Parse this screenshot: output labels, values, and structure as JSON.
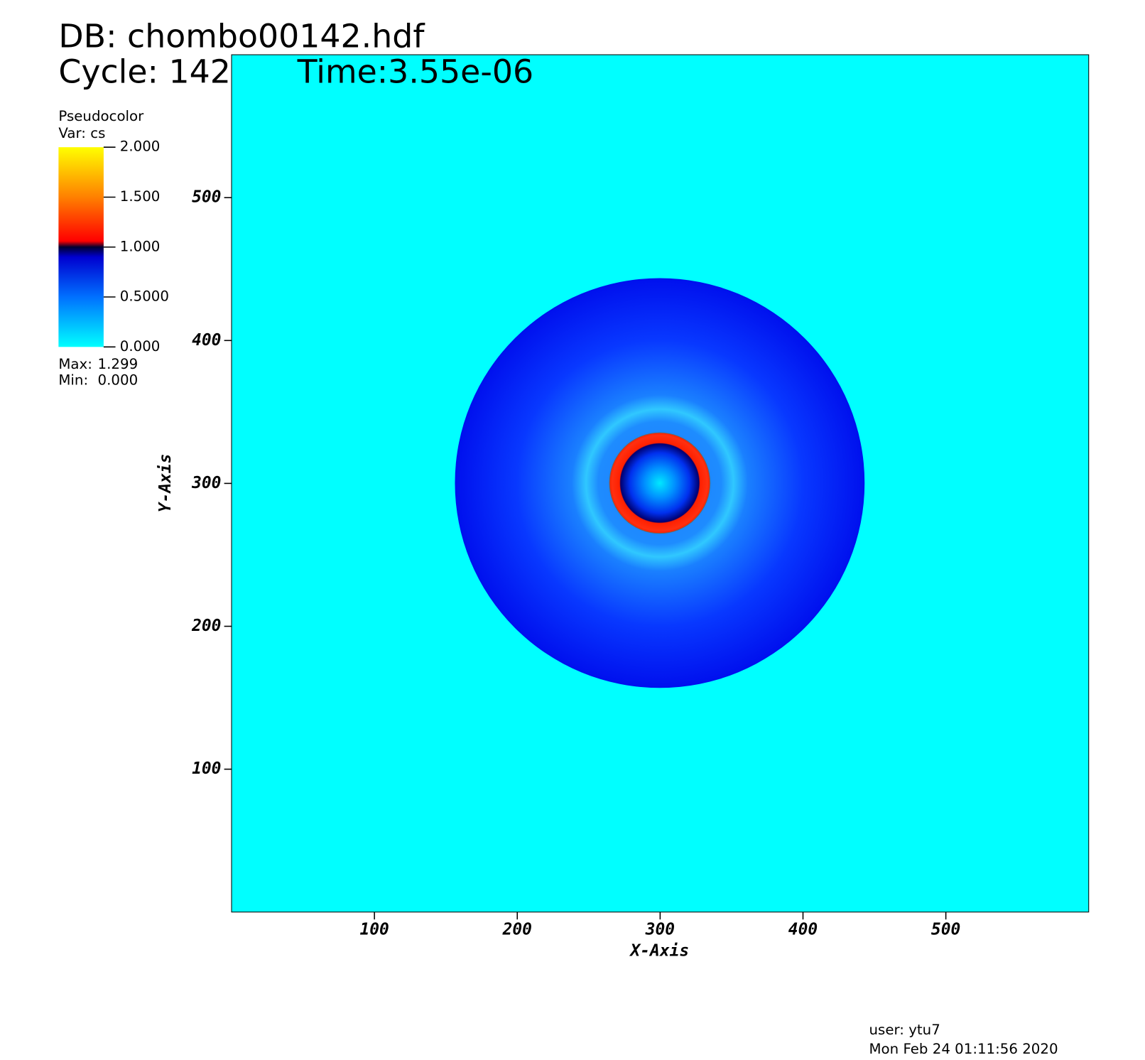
{
  "chart_data": {
    "type": "pseudocolor",
    "db_title": "DB: chombo00142.hdf",
    "cycle": "Cycle: 142",
    "time": "Time:3.55e-06",
    "xlabel": "X-Axis",
    "ylabel": "Y-Axis",
    "xlim": [
      0,
      600
    ],
    "ylim": [
      0,
      600
    ],
    "xticks": [
      100,
      200,
      300,
      400,
      500
    ],
    "yticks": [
      100,
      200,
      300,
      400,
      500
    ],
    "legend": {
      "title": "Pseudocolor",
      "variable": "Var: cs",
      "lim": [
        0,
        2
      ],
      "ticks": [
        {
          "value": 0,
          "label": "0.000"
        },
        {
          "value": 0.5,
          "label": "0.5000"
        },
        {
          "value": 1,
          "label": "1.000"
        },
        {
          "value": 1.5,
          "label": "1.500"
        },
        {
          "value": 2,
          "label": "2.000"
        }
      ],
      "max_label": "Max:",
      "max": 1.299,
      "min_label": "Min:",
      "min": {
        "value": 0,
        "label": "0.000"
      }
    },
    "user": "user: ytu7",
    "date": "Mon Feb 24 01:11:56 2020"
  }
}
